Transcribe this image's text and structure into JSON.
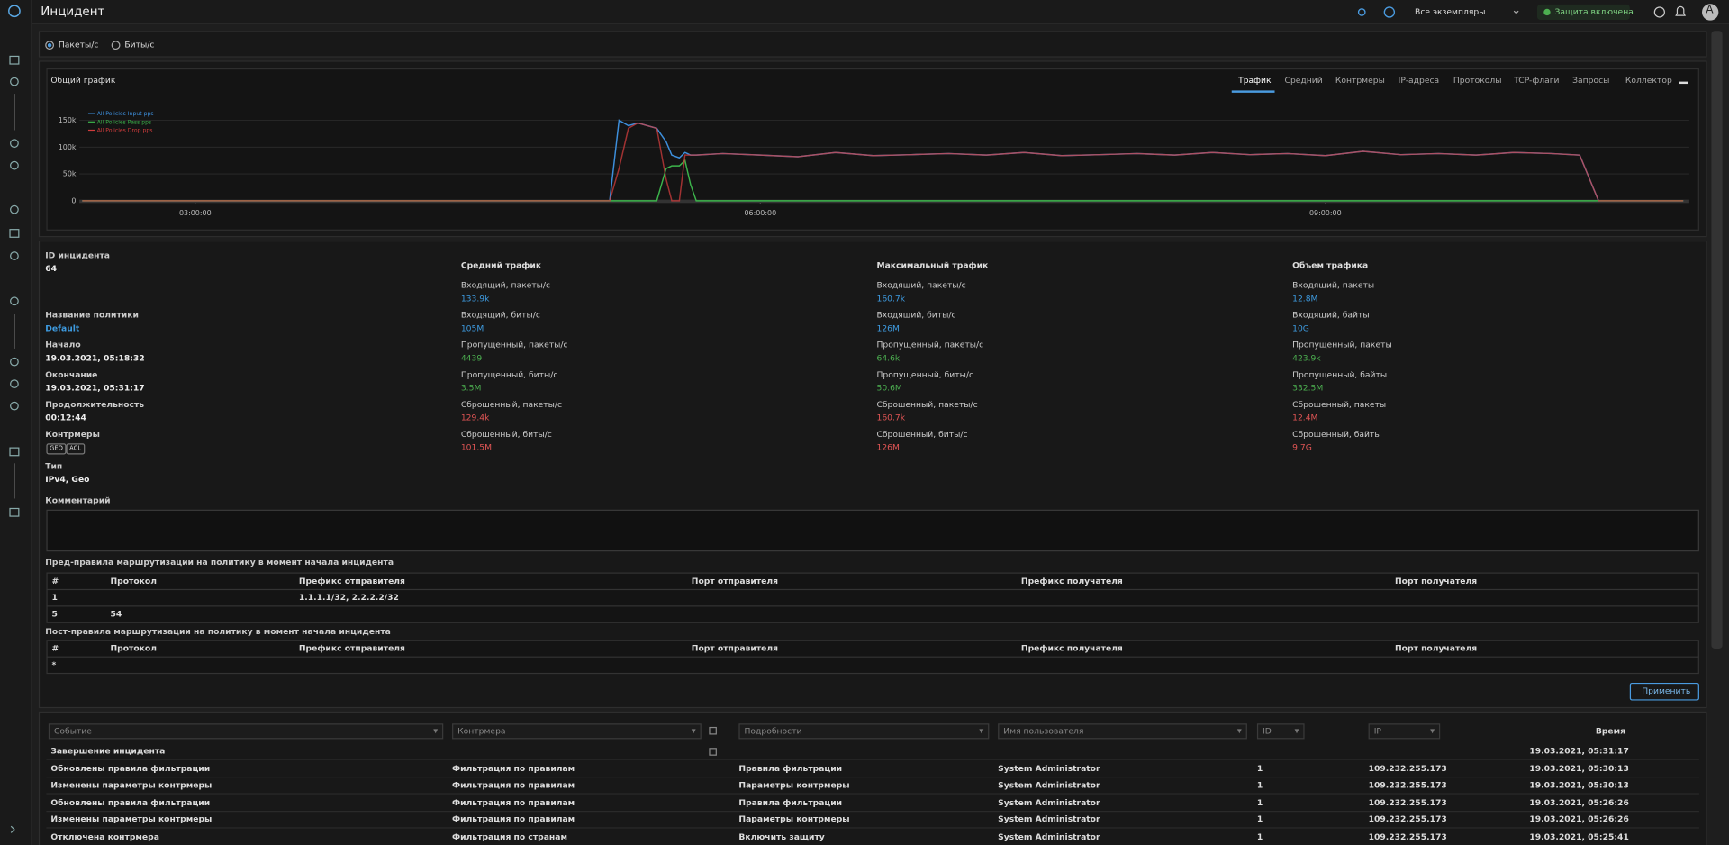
{
  "header": {
    "title": "Инцидент",
    "instance": "Все экземпляры",
    "protection": "Защита включена",
    "avatar": "A"
  },
  "mode": {
    "options": [
      "Пакеты/с",
      "Биты/с"
    ]
  },
  "chart_panel": {
    "title": "Общий график",
    "tabs": [
      "Трафик",
      "Средний",
      "Контрмеры",
      "IP-адреса",
      "Протоколы",
      "TCP-флаги",
      "Запросы",
      "Коллектор"
    ]
  },
  "chart_data": {
    "type": "line",
    "x": [
      2.4,
      3.0,
      4.0,
      5.0,
      5.2,
      5.25,
      5.3,
      5.35,
      5.45,
      5.5,
      5.53,
      5.57,
      5.6,
      5.63,
      5.66,
      5.8,
      6.0,
      6.2,
      6.4,
      6.6,
      6.8,
      7.0,
      7.2,
      7.4,
      7.6,
      7.8,
      8.0,
      8.2,
      8.4,
      8.6,
      8.8,
      9.0,
      9.2,
      9.4,
      9.6,
      9.8,
      10.0,
      10.2,
      10.35,
      10.45,
      10.6,
      10.9
    ],
    "series": [
      {
        "name": "All Policies Input pps",
        "color": "#3d8fdc",
        "values": [
          0,
          0,
          0,
          0,
          0,
          150000,
          140000,
          145000,
          135000,
          110000,
          85000,
          80000,
          90000,
          85000,
          85000,
          88000,
          85000,
          82000,
          90000,
          84000,
          86000,
          88000,
          85000,
          90000,
          84000,
          86000,
          88000,
          85000,
          90000,
          86000,
          88000,
          84000,
          92000,
          86000,
          88000,
          85000,
          90000,
          88000,
          85000,
          0,
          0,
          0
        ]
      },
      {
        "name": "All Policies Pass pps",
        "color": "#3cb44b",
        "values": [
          0,
          0,
          0,
          0,
          0,
          0,
          0,
          0,
          0,
          60000,
          65000,
          65000,
          75000,
          30000,
          0,
          0,
          0,
          0,
          0,
          0,
          0,
          0,
          0,
          0,
          0,
          0,
          0,
          0,
          0,
          0,
          0,
          0,
          0,
          0,
          0,
          0,
          0,
          0,
          0,
          0,
          0,
          0
        ]
      },
      {
        "name": "All Policies Drop pps",
        "color": "#d03c3c",
        "values": [
          0,
          0,
          0,
          0,
          0,
          60000,
          135000,
          145000,
          135000,
          40000,
          0,
          0,
          85000,
          85000,
          85000,
          88000,
          85000,
          82000,
          90000,
          84000,
          86000,
          88000,
          85000,
          90000,
          84000,
          86000,
          88000,
          85000,
          90000,
          86000,
          88000,
          84000,
          92000,
          86000,
          88000,
          85000,
          90000,
          88000,
          85000,
          0,
          0,
          0
        ]
      }
    ],
    "xlim": [
      2.385,
      10.932
    ],
    "xticks": [
      {
        "value": 3,
        "label": "03:00:00"
      },
      {
        "value": 6,
        "label": "06:00:00"
      },
      {
        "value": 9,
        "label": "09:00:00"
      }
    ],
    "ylim": [
      0,
      185000
    ],
    "yticks": [
      0,
      {
        "value": 50000,
        "label": "50k"
      },
      {
        "value": 100000,
        "label": "100k"
      },
      {
        "value": 150000,
        "label": "150k"
      }
    ],
    "grid": true
  },
  "details": {
    "left": [
      {
        "label": "ID инцидента",
        "value": "64"
      },
      {
        "label": "Название политики",
        "value": "Default",
        "color": "#3e9be0"
      },
      {
        "label": "Начало",
        "value": "19.03.2021, 05:18:32"
      },
      {
        "label": "Окончание",
        "value": "19.03.2021, 05:31:17"
      },
      {
        "label": "Продолжительность",
        "value": "00:12:44"
      },
      {
        "label": "Контрмеры",
        "badges": [
          "GEO",
          "ACL"
        ]
      },
      {
        "label": "Тип",
        "value": "IPv4, Geo"
      }
    ],
    "columns": [
      {
        "title": "Средний трафик",
        "items": [
          {
            "label": "Входящий, пакеты/с",
            "value": "133.9k",
            "color": "#3e9be0"
          },
          {
            "label": "Входящий, биты/с",
            "value": "105M",
            "color": "#3e9be0"
          },
          {
            "label": "Пропущенный, пакеты/с",
            "value": "4439",
            "color": "#4caf50"
          },
          {
            "label": "Пропущенный, биты/с",
            "value": "3.5M",
            "color": "#4caf50"
          },
          {
            "label": "Сброшенный, пакеты/с",
            "value": "129.4k",
            "color": "#e05555"
          },
          {
            "label": "Сброшенный, биты/с",
            "value": "101.5M",
            "color": "#e05555"
          }
        ]
      },
      {
        "title": "Максимальный трафик",
        "items": [
          {
            "label": "Входящий, пакеты/с",
            "value": "160.7k",
            "color": "#3e9be0"
          },
          {
            "label": "Входящий, биты/с",
            "value": "126M",
            "color": "#3e9be0"
          },
          {
            "label": "Пропущенный, пакеты/с",
            "value": "64.6k",
            "color": "#4caf50"
          },
          {
            "label": "Пропущенный, биты/с",
            "value": "50.6M",
            "color": "#4caf50"
          },
          {
            "label": "Сброшенный, пакеты/с",
            "value": "160.7k",
            "color": "#e05555"
          },
          {
            "label": "Сброшенный, биты/с",
            "value": "126M",
            "color": "#e05555"
          }
        ]
      },
      {
        "title": "Объем трафика",
        "items": [
          {
            "label": "Входящий, пакеты",
            "value": "12.8M",
            "color": "#3e9be0"
          },
          {
            "label": "Входящий, байты",
            "value": "10G",
            "color": "#3e9be0"
          },
          {
            "label": "Пропущенный, пакеты",
            "value": "423.9k",
            "color": "#4caf50"
          },
          {
            "label": "Пропущенный, байты",
            "value": "332.5M",
            "color": "#4caf50"
          },
          {
            "label": "Сброшенный, пакеты",
            "value": "12.4M",
            "color": "#e05555"
          },
          {
            "label": "Сброшенный, байты",
            "value": "9.7G",
            "color": "#e05555"
          }
        ]
      }
    ],
    "comment_label": "Комментарий"
  },
  "pre_rules": {
    "title": "Пред-правила маршрутизации на политику в момент начала инцидента",
    "headers": [
      "#",
      "Протокол",
      "Префикс отправителя",
      "Порт отправителя",
      "Префикс получателя",
      "Порт получателя"
    ],
    "rows": [
      {
        "num": "1",
        "src_prefix": "1.1.1.1/32, 2.2.2.2/32"
      },
      {
        "num": "5",
        "protocol": "54"
      }
    ]
  },
  "post_rules": {
    "title": "Пост-правила маршрутизации на политику в момент начала инцидента",
    "headers": [
      "#",
      "Протокол",
      "Префикс отправителя",
      "Порт отправителя",
      "Префикс получателя",
      "Порт получателя"
    ],
    "rows": [
      {
        "num": "*"
      }
    ]
  },
  "apply_button": "Применить",
  "events": {
    "filters": [
      "Событие",
      "Контрмера",
      "Подробности",
      "Имя пользователя",
      "ID",
      "IP"
    ],
    "time_header": "Время",
    "rows": [
      {
        "event": "Завершение инцидента",
        "time": "19.03.2021, 05:31:17"
      },
      {
        "event": "Обновлены правила фильтрации",
        "countermeasure": "Фильтрация по правилам",
        "details": "Правила фильтрации",
        "user": "System Administrator",
        "id": "1",
        "ip": "109.232.255.173",
        "time": "19.03.2021, 05:30:13"
      },
      {
        "event": "Изменены параметры контрмеры",
        "countermeasure": "Фильтрация по правилам",
        "details": "Параметры контрмеры",
        "user": "System Administrator",
        "id": "1",
        "ip": "109.232.255.173",
        "time": "19.03.2021, 05:30:13"
      },
      {
        "event": "Обновлены правила фильтрации",
        "countermeasure": "Фильтрация по правилам",
        "details": "Правила фильтрации",
        "user": "System Administrator",
        "id": "1",
        "ip": "109.232.255.173",
        "time": "19.03.2021, 05:26:26"
      },
      {
        "event": "Изменены параметры контрмеры",
        "countermeasure": "Фильтрация по правилам",
        "details": "Параметры контрмеры",
        "user": "System Administrator",
        "id": "1",
        "ip": "109.232.255.173",
        "time": "19.03.2021, 05:26:26"
      },
      {
        "event": "Отключена контрмера",
        "countermeasure": "Фильтрация по странам",
        "details": "Включить защиту",
        "user": "System Administrator",
        "id": "1",
        "ip": "109.232.255.173",
        "time": "19.03.2021, 05:25:41"
      }
    ]
  }
}
